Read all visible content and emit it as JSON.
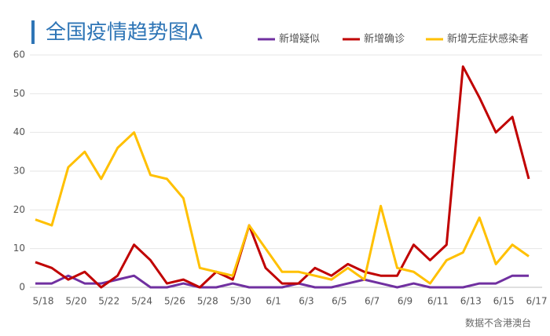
{
  "chart_data": {
    "type": "line",
    "title": "全国疫情趋势图A",
    "note": "数据不含港澳台",
    "categories": [
      "5/18",
      null,
      "5/20",
      null,
      "5/22",
      null,
      "5/24",
      null,
      "5/26",
      null,
      "5/28",
      null,
      "5/30",
      null,
      "6/1",
      null,
      "6/3",
      null,
      "6/5",
      null,
      "6/7",
      null,
      "6/9",
      null,
      "6/11",
      null,
      "6/13",
      null,
      "6/15",
      null,
      "6/17"
    ],
    "series": [
      {
        "name": "新增疑似",
        "color": "#7030a0",
        "values": [
          1,
          1,
          3,
          1,
          1,
          2,
          3,
          0,
          0,
          1,
          0,
          0,
          1,
          0,
          0,
          0,
          1,
          0,
          0,
          1,
          2,
          1,
          0,
          1,
          0,
          0,
          0,
          1,
          1,
          3,
          3
        ]
      },
      {
        "name": "新增确诊",
        "color": "#c00000",
        "values": [
          6.5,
          5,
          2,
          4,
          0,
          3,
          11,
          7,
          1,
          2,
          0,
          4,
          2,
          16,
          5,
          1,
          1,
          5,
          3,
          6,
          4,
          3,
          3,
          11,
          7,
          11,
          57,
          49,
          40,
          44,
          28
        ]
      },
      {
        "name": "新增无症状感染者",
        "color": "#ffc000",
        "values": [
          17.5,
          16,
          31,
          35,
          28,
          36,
          40,
          29,
          28,
          23,
          5,
          4,
          3,
          16,
          10,
          4,
          4,
          3,
          2,
          5,
          2,
          21,
          5,
          4,
          1,
          7,
          9,
          18,
          6,
          11,
          8
        ]
      }
    ],
    "ylim": [
      0,
      60
    ],
    "yticks": [
      0,
      10,
      20,
      30,
      40,
      50,
      60
    ],
    "grid": true
  }
}
